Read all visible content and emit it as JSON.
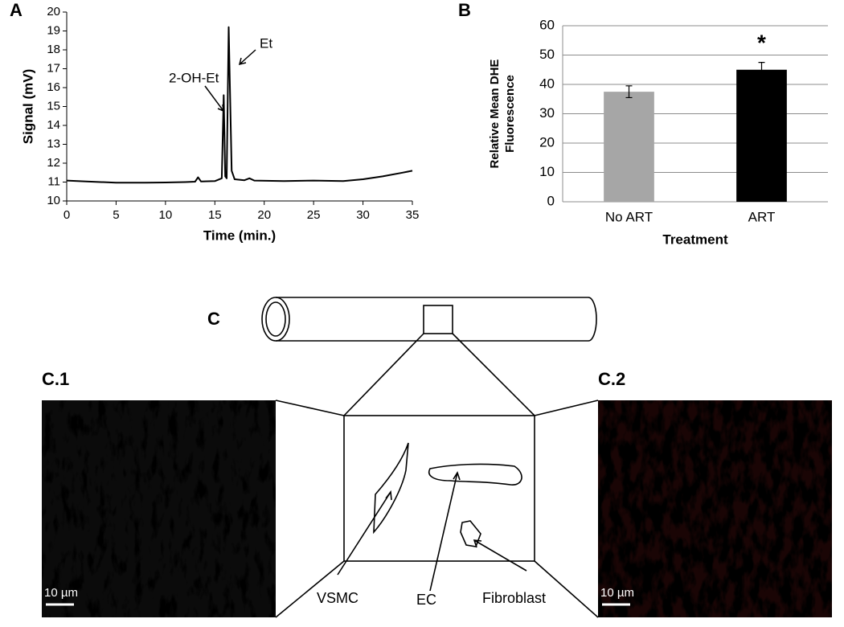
{
  "chart_data": [
    {
      "type": "line",
      "panel_label": "A",
      "xlabel": "Time (min.)",
      "ylabel": "Signal (mV)",
      "x": [
        0,
        2,
        5,
        8,
        10,
        12,
        13,
        13.3,
        13.6,
        15,
        15.7,
        15.9,
        16.05,
        16.2,
        16.4,
        16.7,
        17,
        18,
        18.5,
        19,
        22,
        25,
        28,
        30,
        32,
        34,
        35
      ],
      "values": [
        11.08,
        11.03,
        10.97,
        10.97,
        10.98,
        11.0,
        11.02,
        11.25,
        11.03,
        11.05,
        11.2,
        15.6,
        11.3,
        11.2,
        19.2,
        11.6,
        11.15,
        11.1,
        11.2,
        11.08,
        11.05,
        11.08,
        11.05,
        11.15,
        11.3,
        11.5,
        11.6
      ],
      "color": "#000000",
      "xlim": [
        0,
        35
      ],
      "xticks": [
        0,
        5,
        10,
        15,
        20,
        25,
        30,
        35
      ],
      "ylim": [
        10,
        20
      ],
      "yticks": [
        10,
        11,
        12,
        13,
        14,
        15,
        16,
        17,
        18,
        19,
        20
      ],
      "annotations": [
        "2-OH-Et",
        "Et"
      ]
    },
    {
      "type": "bar",
      "panel_label": "B",
      "xlabel": "Treatment",
      "ylabel": [
        "Relative Mean DHE",
        "Fluorescence"
      ],
      "categories": [
        "No ART",
        "ART"
      ],
      "values": [
        37.5,
        45
      ],
      "errors": [
        2,
        2.5
      ],
      "colors": [
        "#a6a6a6",
        "#000000"
      ],
      "ylim": [
        0,
        60
      ],
      "yticks": [
        0,
        10,
        20,
        30,
        40,
        50,
        60
      ],
      "grid": true,
      "annotations": [
        "*"
      ]
    }
  ],
  "diagram": {
    "panel_label": "C",
    "left_label": "C.1",
    "right_label": "C.2",
    "cells": [
      "VSMC",
      "EC",
      "Fibroblast"
    ],
    "scale_bars": [
      "10 µm",
      "10 µm"
    ]
  }
}
